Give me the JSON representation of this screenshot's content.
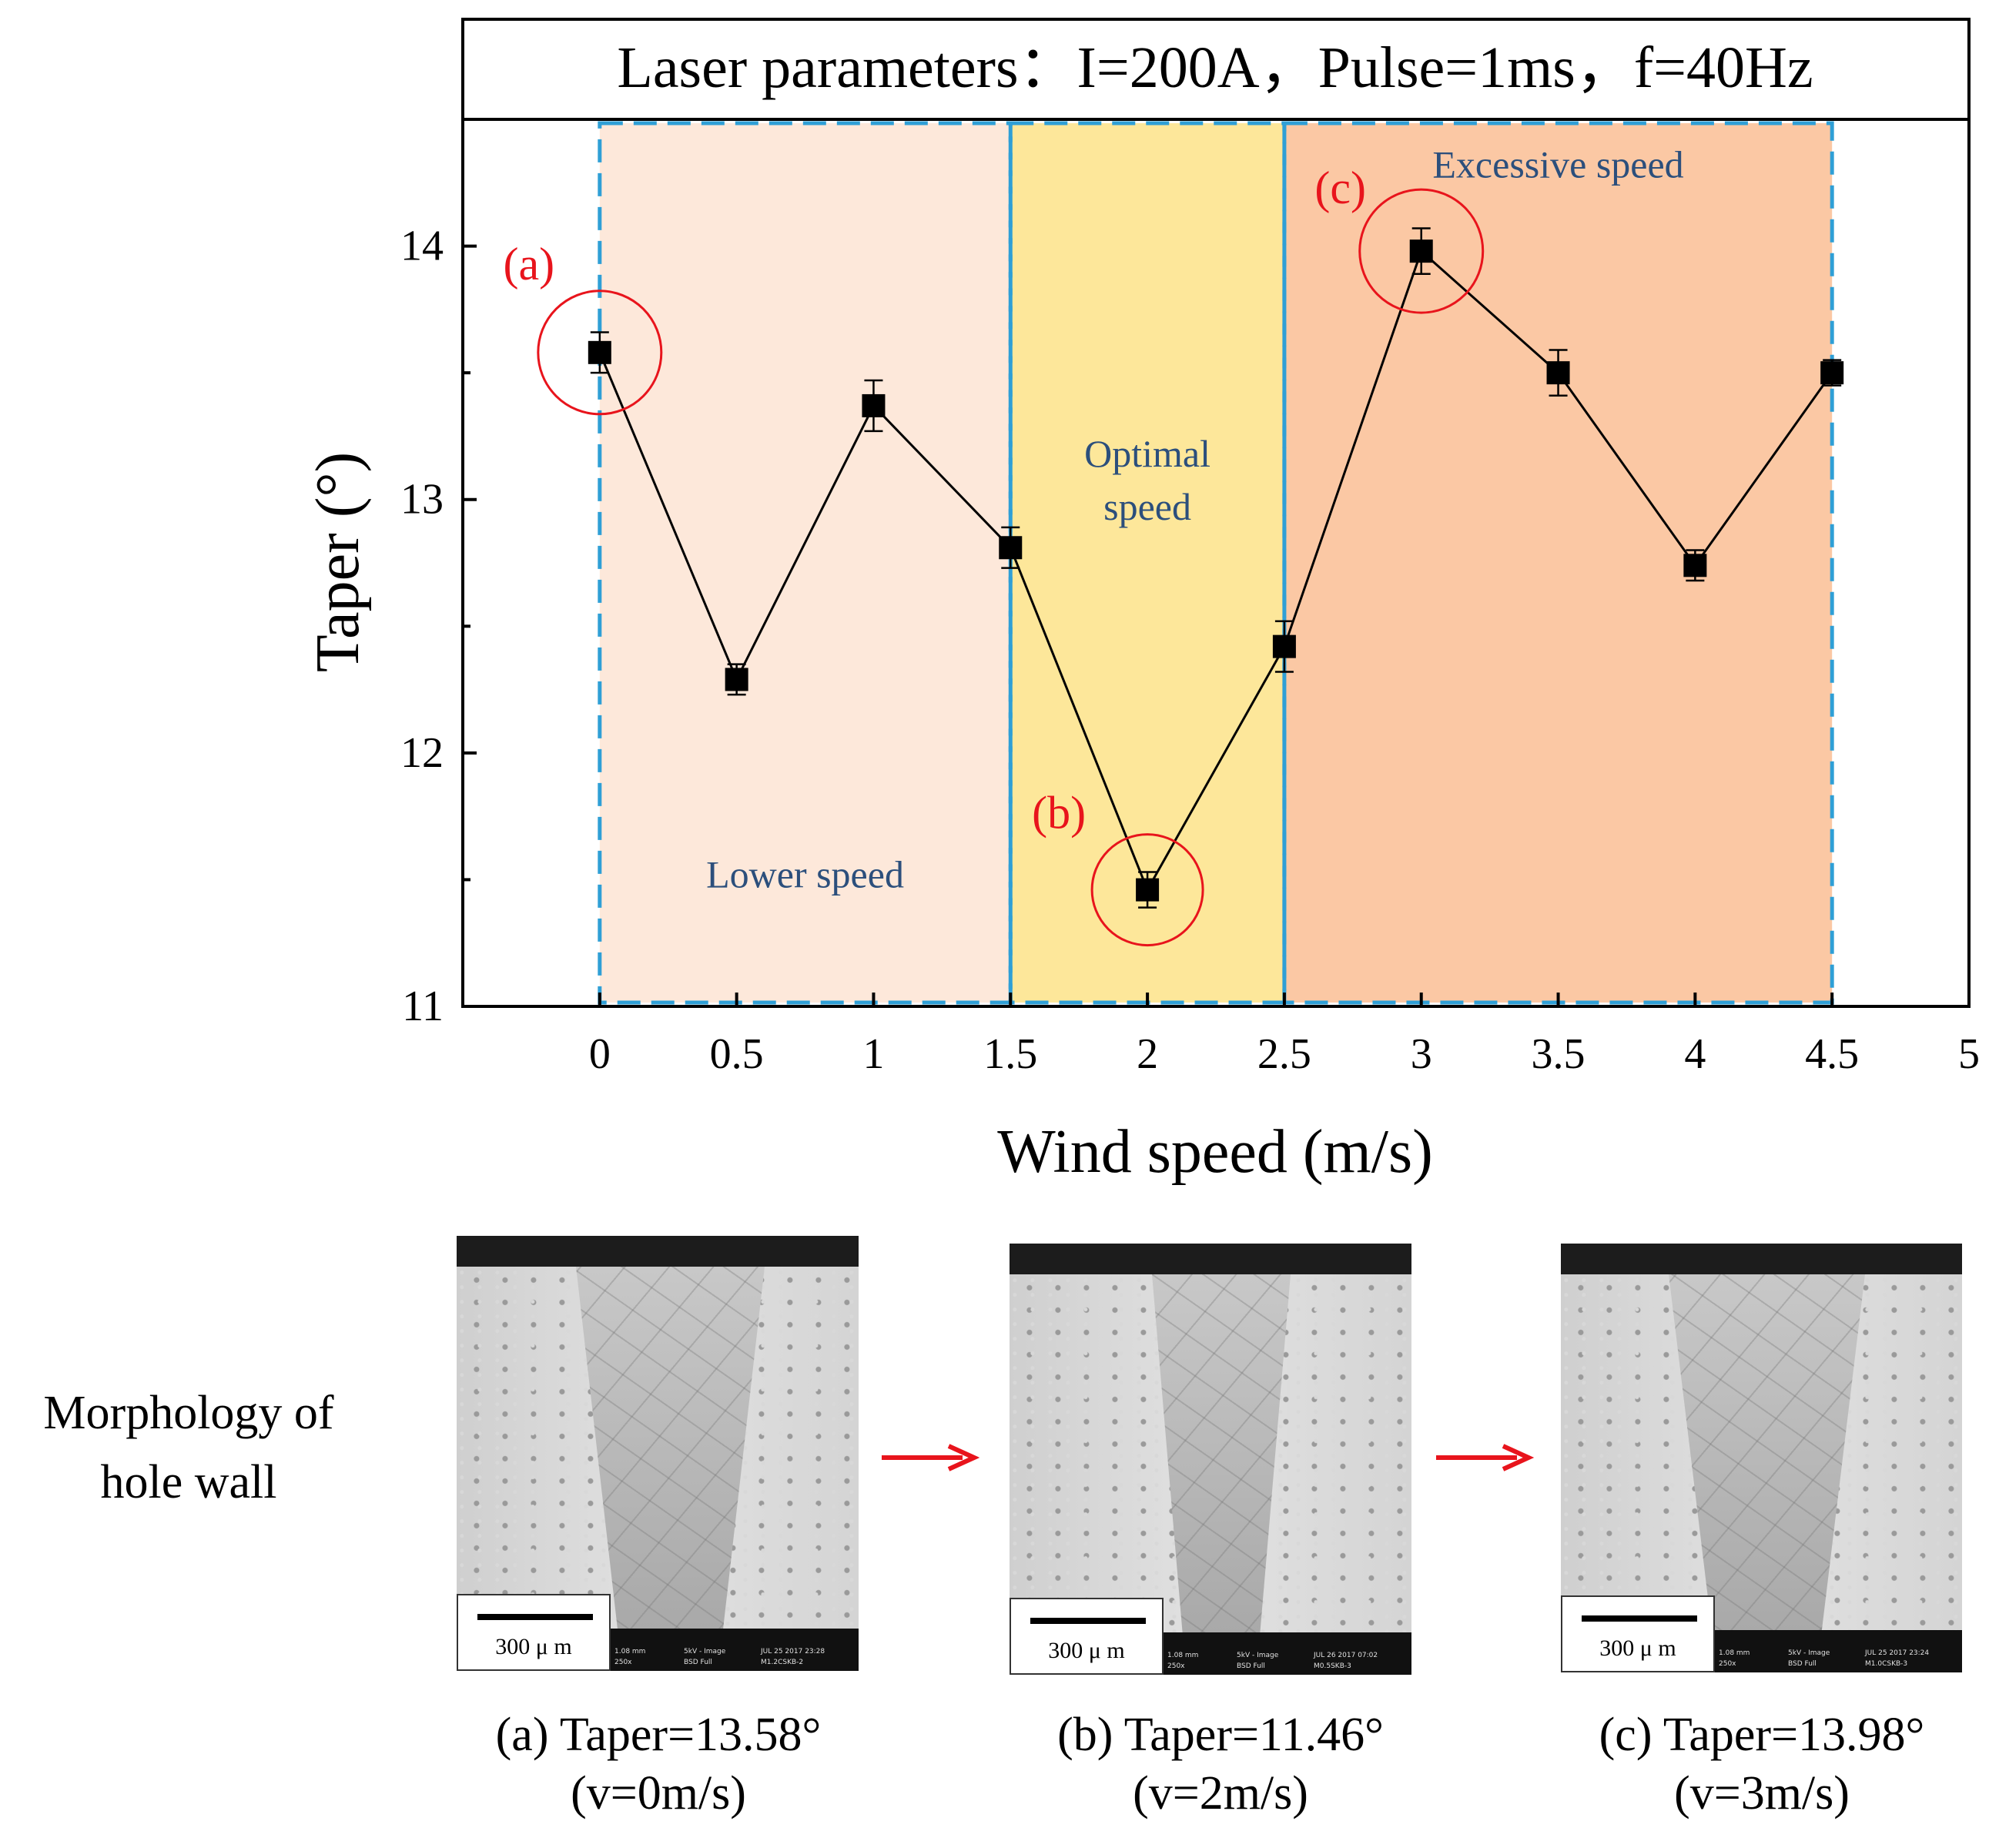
{
  "chart_data": {
    "type": "line",
    "title": "Laser parameters：I=200A，Pulse=1ms，f=40Hz",
    "xlabel": "Wind speed (m/s)",
    "ylabel": "Taper (°)",
    "xlim": [
      -0.5,
      5
    ],
    "ylim": [
      11,
      14.5
    ],
    "xticks": [
      "0",
      "0.5",
      "1",
      "1.5",
      "2",
      "2.5",
      "3",
      "3.5",
      "4",
      "4.5",
      "5"
    ],
    "yticks": [
      "11",
      "12",
      "13",
      "14"
    ],
    "x": [
      0,
      0.5,
      1,
      1.5,
      2,
      2.5,
      3,
      3.5,
      4,
      4.5
    ],
    "y": [
      13.58,
      12.29,
      13.37,
      12.81,
      11.46,
      12.42,
      13.98,
      13.5,
      12.74,
      13.5
    ],
    "error": [
      0.08,
      0.06,
      0.1,
      0.08,
      0.07,
      0.1,
      0.09,
      0.09,
      0.06,
      0.05
    ],
    "regions": [
      {
        "label": "Lower speed",
        "from": 0,
        "to": 1.5,
        "color": "#fde8da"
      },
      {
        "label": "Optimal speed",
        "label_lines": [
          "Optimal",
          "speed"
        ],
        "from": 1.5,
        "to": 2.5,
        "color": "#fde79a"
      },
      {
        "label": "Excessive speed",
        "from": 2.5,
        "to": 4.5,
        "color": "#fbc8a4"
      }
    ],
    "annotations": [
      {
        "label": "(a)",
        "x": 0,
        "y": 13.58
      },
      {
        "label": "(b)",
        "x": 2,
        "y": 11.46
      },
      {
        "label": "(c)",
        "x": 3,
        "y": 13.98
      }
    ]
  },
  "colors": {
    "marker": "#000000",
    "line": "#000000",
    "region_border": "#2f9fd6",
    "region_label": "#2c4f7c",
    "annotation": "#e8141c",
    "arrow": "#e8141c"
  },
  "morphology": {
    "title": "Morphology of hole wall",
    "title_lines": [
      "Morphology of",
      "hole wall"
    ],
    "images": [
      {
        "scale_label": "300 μ m",
        "caption_line1": "(a) Taper=13.58°",
        "caption_line2": "(v=0m/s)",
        "info": [
          "250x",
          "5kV - Image",
          "JUL 25 2017 23:28",
          "1.08 mm",
          "BSD Full",
          "M1.2CSKB-2"
        ]
      },
      {
        "scale_label": "300 μ m",
        "caption_line1": "(b) Taper=11.46°",
        "caption_line2": "(v=2m/s)",
        "info": [
          "250x",
          "5kV - Image",
          "JUL 26 2017 07:02",
          "1.08 mm",
          "BSD Full",
          "M0.5SKB-3"
        ]
      },
      {
        "scale_label": "300 μ m",
        "caption_line1": "(c) Taper=13.98°",
        "caption_line2": "(v=3m/s)",
        "info": [
          "250x",
          "5kV - Image",
          "JUL 25 2017 23:24",
          "1.08 mm",
          "BSD Full",
          "M1.0CSKB-3"
        ]
      }
    ]
  }
}
